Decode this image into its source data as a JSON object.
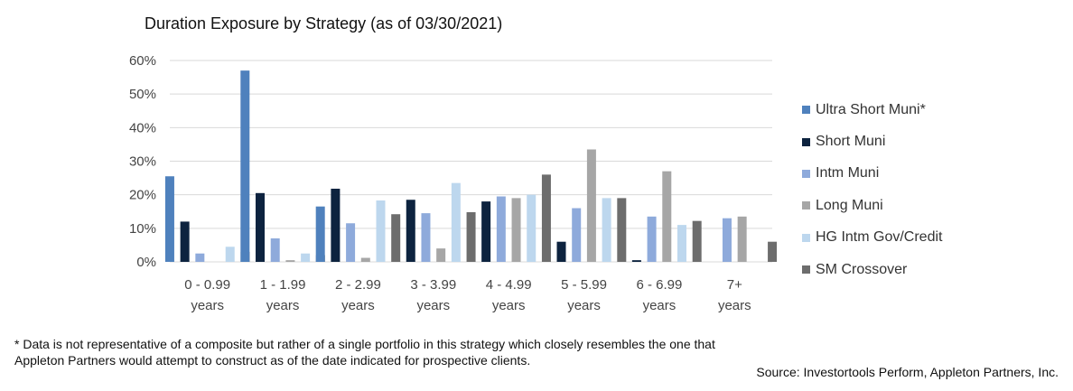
{
  "chart_data": {
    "type": "bar",
    "title": "Duration Exposure by Strategy (as of 03/30/2021)",
    "categories": [
      [
        "0 - 0.99",
        "years"
      ],
      [
        "1 - 1.99",
        "years"
      ],
      [
        "2 - 2.99",
        "years"
      ],
      [
        "3 - 3.99",
        "years"
      ],
      [
        "4 - 4.99",
        "years"
      ],
      [
        "5 - 5.99",
        "years"
      ],
      [
        "6 - 6.99",
        "years"
      ],
      [
        "7+",
        "years"
      ]
    ],
    "yticks": [
      "0%",
      "10%",
      "20%",
      "30%",
      "40%",
      "50%",
      "60%"
    ],
    "ylim": [
      0,
      60
    ],
    "grid": true,
    "legend_position": "right",
    "series": [
      {
        "name": "Ultra Short Muni*",
        "color": "#4f81bd",
        "values": [
          25.5,
          57,
          16.5,
          0,
          0,
          0,
          0,
          0
        ]
      },
      {
        "name": "Short Muni",
        "color": "#0d233f",
        "values": [
          12,
          20.5,
          21.8,
          18.5,
          18,
          6,
          0.5,
          0
        ]
      },
      {
        "name": "Intm Muni",
        "color": "#8eaadb",
        "values": [
          2.5,
          7,
          11.5,
          14.5,
          19.5,
          16,
          13.5,
          13
        ]
      },
      {
        "name": "Long Muni",
        "color": "#a6a6a6",
        "values": [
          0,
          0.5,
          1.2,
          4,
          19,
          33.5,
          27,
          13.5
        ]
      },
      {
        "name": "HG Intm Gov/Credit",
        "color": "#bdd7ee",
        "values": [
          4.5,
          2.5,
          18.3,
          23.5,
          20,
          19,
          11,
          0
        ]
      },
      {
        "name": "SM Crossover",
        "color": "#6d6d6d",
        "values": [
          3,
          2,
          14.2,
          14.8,
          26,
          19,
          12.2,
          6
        ]
      }
    ]
  },
  "footnote": "* Data is not representative of a composite but rather of a single portfolio in this strategy which closely resembles the one that Appleton Partners would attempt to construct as of the date indicated for prospective clients.",
  "source": "Source: Investortools Perform, Appleton Partners, Inc."
}
